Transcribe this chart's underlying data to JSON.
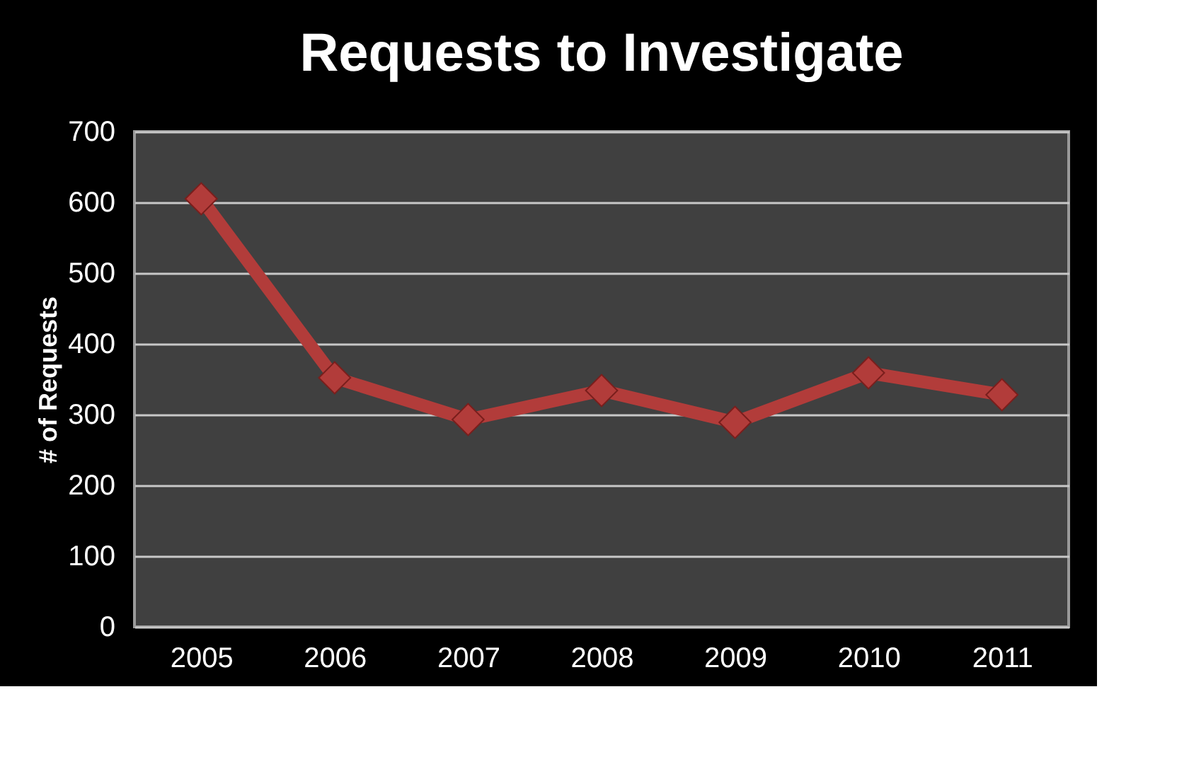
{
  "chart_data": {
    "type": "line",
    "title": "Requests to Investigate",
    "ylabel": "# of Requests",
    "categories": [
      "2005",
      "2006",
      "2007",
      "2008",
      "2009",
      "2010",
      "2011"
    ],
    "series": [
      {
        "color": "#b23c3a",
        "values": [
          605,
          352,
          293,
          334,
          289,
          359,
          328
        ]
      }
    ],
    "ylim": [
      0,
      700
    ],
    "yticks": [
      0,
      100,
      200,
      300,
      400,
      500,
      600,
      700
    ],
    "grid": "y",
    "marker": "diamond",
    "line_style": "solid",
    "legend": false
  }
}
